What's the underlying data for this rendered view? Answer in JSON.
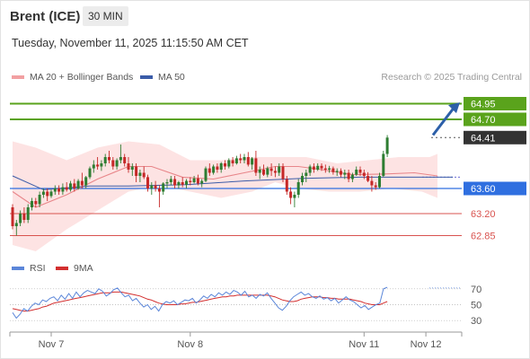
{
  "header": {
    "title": "Brent (ICE)",
    "timeframe": "30 MIN",
    "datetime": "Tuesday, November 11, 2025 11:15:50 AM CET"
  },
  "legend": {
    "bb_label": "MA 20 + Bollinger Bands",
    "ma50_label": "MA 50",
    "credit": "Research © 2025 Trading Central"
  },
  "rsi_legend": {
    "rsi_label": "RSI",
    "ma_label": "9MA"
  },
  "colors": {
    "up": "#2e7d32",
    "down": "#c62828",
    "resistance": "#5aa31c",
    "support_blue": "#2f6fe0",
    "support_red": "#d9534f",
    "last": "#333333",
    "ma20": "#e8868a",
    "band": "#fde3e3",
    "ma50": "#3b5ca8",
    "arrow": "#2c5fa8",
    "rsi": "#5b86d9",
    "rsi_ma": "#d32f2f"
  },
  "chart_data": [
    {
      "type": "candlestick",
      "title": "Brent (ICE)",
      "ylim": [
        62.6,
        65.2
      ],
      "levels": [
        {
          "value": 64.95,
          "label": "64.95",
          "kind": "resistance"
        },
        {
          "value": 64.7,
          "label": "64.70",
          "kind": "resistance"
        },
        {
          "value": 64.41,
          "label": "64.41",
          "kind": "last"
        },
        {
          "value": 63.6,
          "label": "63.60",
          "kind": "pivot"
        },
        {
          "value": 63.2,
          "label": "63.20",
          "kind": "support"
        },
        {
          "value": 62.85,
          "label": "62.85",
          "kind": "support"
        }
      ],
      "x_ticks": [
        "Nov 7",
        "Nov 8",
        "Nov 11",
        "Nov 12"
      ],
      "x_tick_index": [
        10,
        46,
        91,
        107
      ],
      "ma50_segments": [
        [
          0,
          63.8
        ],
        [
          8,
          63.58
        ],
        [
          20,
          63.64
        ],
        [
          30,
          63.64
        ],
        [
          45,
          63.66
        ],
        [
          60,
          63.72
        ],
        [
          75,
          63.76
        ],
        [
          90,
          63.78
        ],
        [
          104,
          63.78
        ],
        [
          114,
          63.78
        ]
      ],
      "ma20": [
        [
          0,
          63.55
        ],
        [
          6,
          63.3
        ],
        [
          14,
          63.5
        ],
        [
          22,
          63.75
        ],
        [
          30,
          63.95
        ],
        [
          36,
          63.95
        ],
        [
          44,
          63.78
        ],
        [
          52,
          63.75
        ],
        [
          60,
          63.85
        ],
        [
          68,
          63.95
        ],
        [
          74,
          63.95
        ],
        [
          80,
          63.9
        ],
        [
          88,
          63.82
        ],
        [
          96,
          63.83
        ],
        [
          104,
          63.85
        ],
        [
          110,
          63.8
        ]
      ],
      "band_upper": [
        [
          0,
          64.35
        ],
        [
          6,
          64.25
        ],
        [
          14,
          64.05
        ],
        [
          22,
          64.25
        ],
        [
          30,
          64.35
        ],
        [
          38,
          64.3
        ],
        [
          46,
          64.05
        ],
        [
          54,
          64.05
        ],
        [
          62,
          64.1
        ],
        [
          68,
          64.1
        ],
        [
          76,
          64.1
        ],
        [
          84,
          64.0
        ],
        [
          92,
          64.05
        ],
        [
          100,
          64.1
        ],
        [
          108,
          64.1
        ],
        [
          110,
          64.15
        ]
      ],
      "band_lower": [
        [
          0,
          62.7
        ],
        [
          6,
          62.6
        ],
        [
          14,
          62.95
        ],
        [
          22,
          63.25
        ],
        [
          30,
          63.55
        ],
        [
          38,
          63.65
        ],
        [
          46,
          63.55
        ],
        [
          54,
          63.45
        ],
        [
          62,
          63.55
        ],
        [
          68,
          63.7
        ],
        [
          74,
          63.6
        ],
        [
          82,
          63.55
        ],
        [
          90,
          63.55
        ],
        [
          98,
          63.6
        ],
        [
          106,
          63.55
        ],
        [
          110,
          63.45
        ]
      ],
      "candles": [
        [
          63.3,
          63.35,
          62.95,
          63.0
        ],
        [
          63.0,
          63.1,
          62.85,
          63.05
        ],
        [
          63.05,
          63.25,
          63.0,
          63.2
        ],
        [
          63.2,
          63.3,
          63.05,
          63.1
        ],
        [
          63.1,
          63.35,
          63.05,
          63.3
        ],
        [
          63.3,
          63.45,
          63.25,
          63.4
        ],
        [
          63.4,
          63.45,
          63.3,
          63.35
        ],
        [
          63.35,
          63.55,
          63.3,
          63.5
        ],
        [
          63.5,
          63.6,
          63.45,
          63.55
        ],
        [
          63.55,
          63.6,
          63.4,
          63.48
        ],
        [
          63.48,
          63.58,
          63.45,
          63.55
        ],
        [
          63.55,
          63.65,
          63.5,
          63.6
        ],
        [
          63.6,
          63.65,
          63.5,
          63.55
        ],
        [
          63.55,
          63.68,
          63.5,
          63.62
        ],
        [
          63.62,
          63.7,
          63.55,
          63.58
        ],
        [
          63.58,
          63.72,
          63.55,
          63.68
        ],
        [
          63.68,
          63.75,
          63.55,
          63.6
        ],
        [
          63.6,
          63.75,
          63.58,
          63.72
        ],
        [
          63.72,
          63.85,
          63.6,
          63.65
        ],
        [
          63.65,
          63.8,
          63.6,
          63.78
        ],
        [
          63.78,
          63.95,
          63.75,
          63.92
        ],
        [
          63.92,
          64.05,
          63.85,
          63.98
        ],
        [
          63.98,
          64.1,
          63.9,
          63.95
        ],
        [
          63.95,
          64.05,
          63.88,
          64.0
        ],
        [
          64.0,
          64.15,
          63.95,
          64.1
        ],
        [
          64.1,
          64.2,
          64.0,
          64.05
        ],
        [
          64.05,
          64.1,
          63.9,
          63.95
        ],
        [
          63.95,
          64.08,
          63.9,
          64.05
        ],
        [
          64.05,
          64.3,
          64.0,
          64.1
        ],
        [
          64.1,
          64.15,
          63.95,
          64.0
        ],
        [
          64.0,
          64.1,
          63.85,
          63.9
        ],
        [
          63.9,
          64.0,
          63.8,
          63.95
        ],
        [
          63.95,
          64.0,
          63.7,
          63.8
        ],
        [
          63.8,
          63.9,
          63.7,
          63.85
        ],
        [
          63.85,
          63.95,
          63.75,
          63.78
        ],
        [
          63.78,
          63.82,
          63.55,
          63.6
        ],
        [
          63.6,
          63.7,
          63.5,
          63.65
        ],
        [
          63.65,
          63.72,
          63.55,
          63.6
        ],
        [
          63.6,
          63.65,
          63.3,
          63.55
        ],
        [
          63.55,
          63.7,
          63.5,
          63.68
        ],
        [
          63.68,
          63.75,
          63.6,
          63.7
        ],
        [
          63.7,
          63.8,
          63.65,
          63.75
        ],
        [
          63.75,
          63.8,
          63.6,
          63.65
        ],
        [
          63.65,
          63.72,
          63.6,
          63.7
        ],
        [
          63.7,
          63.78,
          63.62,
          63.66
        ],
        [
          63.66,
          63.75,
          63.6,
          63.72
        ],
        [
          63.72,
          63.78,
          63.65,
          63.7
        ],
        [
          63.7,
          63.8,
          63.68,
          63.76
        ],
        [
          63.76,
          63.82,
          63.65,
          63.68
        ],
        [
          63.68,
          63.75,
          63.62,
          63.72
        ],
        [
          63.72,
          63.95,
          63.7,
          63.92
        ],
        [
          63.92,
          64.0,
          63.8,
          63.85
        ],
        [
          63.85,
          63.98,
          63.82,
          63.95
        ],
        [
          63.95,
          64.0,
          63.85,
          63.9
        ],
        [
          63.9,
          64.02,
          63.85,
          64.0
        ],
        [
          64.0,
          64.05,
          63.9,
          63.95
        ],
        [
          63.95,
          64.08,
          63.92,
          64.05
        ],
        [
          64.05,
          64.1,
          63.95,
          64.0
        ],
        [
          64.0,
          64.12,
          63.98,
          64.08
        ],
        [
          64.08,
          64.15,
          64.0,
          64.05
        ],
        [
          64.05,
          64.15,
          64.0,
          64.1
        ],
        [
          64.1,
          64.18,
          63.95,
          63.98
        ],
        [
          63.98,
          64.1,
          63.9,
          64.08
        ],
        [
          64.08,
          64.2,
          63.8,
          63.85
        ],
        [
          63.85,
          63.95,
          63.75,
          63.9
        ],
        [
          63.9,
          63.98,
          63.8,
          63.82
        ],
        [
          63.82,
          63.95,
          63.78,
          63.92
        ],
        [
          63.92,
          64.0,
          63.8,
          63.88
        ],
        [
          63.88,
          63.95,
          63.78,
          63.85
        ],
        [
          63.85,
          64.0,
          63.8,
          63.95
        ],
        [
          63.95,
          64.0,
          63.7,
          63.75
        ],
        [
          63.75,
          63.8,
          63.5,
          63.55
        ],
        [
          63.55,
          63.62,
          63.35,
          63.45
        ],
        [
          63.45,
          63.55,
          63.3,
          63.5
        ],
        [
          63.5,
          63.75,
          63.45,
          63.7
        ],
        [
          63.7,
          63.85,
          63.65,
          63.8
        ],
        [
          63.8,
          63.9,
          63.7,
          63.85
        ],
        [
          63.85,
          63.98,
          63.8,
          63.95
        ],
        [
          63.95,
          64.0,
          63.85,
          63.9
        ],
        [
          63.9,
          64.0,
          63.88,
          63.96
        ],
        [
          63.96,
          64.0,
          63.88,
          63.92
        ],
        [
          63.92,
          63.98,
          63.85,
          63.9
        ],
        [
          63.9,
          63.96,
          63.85,
          63.92
        ],
        [
          63.92,
          63.95,
          63.82,
          63.86
        ],
        [
          63.86,
          63.92,
          63.8,
          63.88
        ],
        [
          63.88,
          63.92,
          63.78,
          63.82
        ],
        [
          63.82,
          63.9,
          63.75,
          63.85
        ],
        [
          63.85,
          63.9,
          63.7,
          63.75
        ],
        [
          63.75,
          63.85,
          63.7,
          63.82
        ],
        [
          63.82,
          63.95,
          63.8,
          63.9
        ],
        [
          63.9,
          63.95,
          63.8,
          63.85
        ],
        [
          63.85,
          63.9,
          63.75,
          63.8
        ],
        [
          63.8,
          63.86,
          63.7,
          63.72
        ],
        [
          63.72,
          63.8,
          63.55,
          63.65
        ],
        [
          63.65,
          63.7,
          63.58,
          63.62
        ],
        [
          63.62,
          63.85,
          63.6,
          63.8
        ],
        [
          63.8,
          64.2,
          63.78,
          64.15
        ],
        [
          64.15,
          64.45,
          64.1,
          64.41
        ]
      ]
    },
    {
      "type": "line",
      "title": "RSI",
      "ylim": [
        20,
        80
      ],
      "y_ticks": [
        70,
        50,
        30
      ],
      "series": [
        {
          "name": "RSI",
          "values": [
            40,
            33,
            38,
            45,
            42,
            48,
            52,
            50,
            56,
            54,
            58,
            60,
            55,
            62,
            57,
            64,
            58,
            66,
            60,
            65,
            68,
            66,
            64,
            70,
            67,
            61,
            64,
            69,
            71,
            65,
            60,
            62,
            55,
            58,
            52,
            47,
            50,
            44,
            48,
            42,
            50,
            54,
            52,
            55,
            50,
            53,
            56,
            55,
            58,
            52,
            56,
            61,
            58,
            63,
            60,
            65,
            62,
            66,
            63,
            68,
            66,
            62,
            67,
            60,
            62,
            58,
            63,
            61,
            65,
            58,
            52,
            46,
            43,
            48,
            55,
            60,
            63,
            66,
            62,
            64,
            60,
            58,
            61,
            57,
            59,
            55,
            58,
            52,
            56,
            60,
            56,
            54,
            50,
            46,
            49,
            44,
            47,
            50,
            52,
            70,
            72
          ]
        },
        {
          "name": "9MA",
          "values": [
            45,
            44,
            43,
            42,
            42,
            43,
            44,
            45,
            47,
            48,
            50,
            52,
            53,
            54,
            55,
            56,
            57,
            58,
            59,
            60,
            61,
            62,
            63,
            64,
            65,
            65,
            65,
            66,
            66,
            66,
            65,
            64,
            63,
            62,
            61,
            59,
            57,
            56,
            54,
            52,
            51,
            50,
            50,
            50,
            50,
            51,
            51,
            52,
            53,
            53,
            54,
            55,
            56,
            57,
            58,
            59,
            60,
            60,
            61,
            61,
            62,
            62,
            62,
            62,
            62,
            62,
            62,
            62,
            62,
            61,
            60,
            58,
            56,
            55,
            54,
            54,
            55,
            57,
            58,
            59,
            60,
            60,
            60,
            59,
            59,
            58,
            58,
            57,
            57,
            57,
            57,
            56,
            55,
            54,
            52,
            51,
            50,
            50,
            50,
            52,
            54
          ]
        }
      ]
    }
  ]
}
